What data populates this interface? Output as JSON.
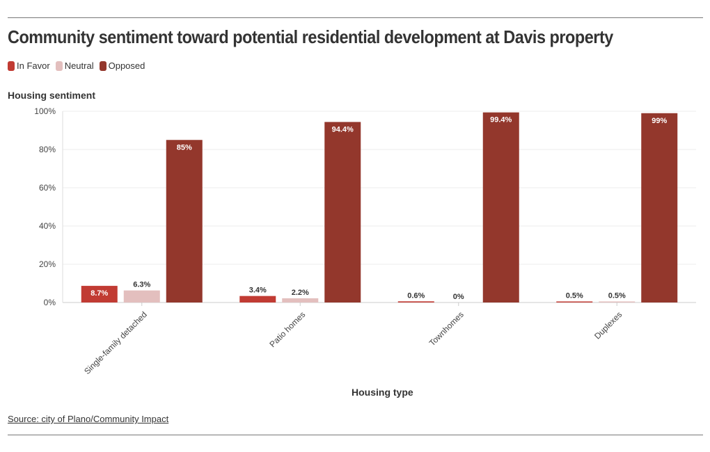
{
  "title": "Community sentiment toward potential residential development at Davis property",
  "source": "Source: city of Plano/Community Impact",
  "chart_data": {
    "type": "bar",
    "title": "Community sentiment toward potential residential development at Davis property",
    "xlabel": "Housing type",
    "ylabel": "Housing sentiment",
    "ylim": [
      0,
      100
    ],
    "yticks": [
      "0%",
      "20%",
      "40%",
      "60%",
      "80%",
      "100%"
    ],
    "categories": [
      "Single-family detached",
      "Patio homes",
      "Townhomes",
      "Duplexes"
    ],
    "legend_position": "top-left",
    "grid": true,
    "series": [
      {
        "name": "In Favor",
        "color": "#c13b33",
        "values": [
          8.7,
          3.4,
          0.6,
          0.5
        ],
        "labels": [
          "8.7%",
          "3.4%",
          "0.6%",
          "0.5%"
        ]
      },
      {
        "name": "Neutral",
        "color": "#e3bfbe",
        "values": [
          6.3,
          2.2,
          0,
          0.5
        ],
        "labels": [
          "6.3%",
          "2.2%",
          "0%",
          "0.5%"
        ]
      },
      {
        "name": "Opposed",
        "color": "#93372c",
        "values": [
          85,
          94.4,
          99.4,
          99
        ],
        "labels": [
          "85%",
          "94.4%",
          "99.4%",
          "99%"
        ]
      }
    ]
  }
}
